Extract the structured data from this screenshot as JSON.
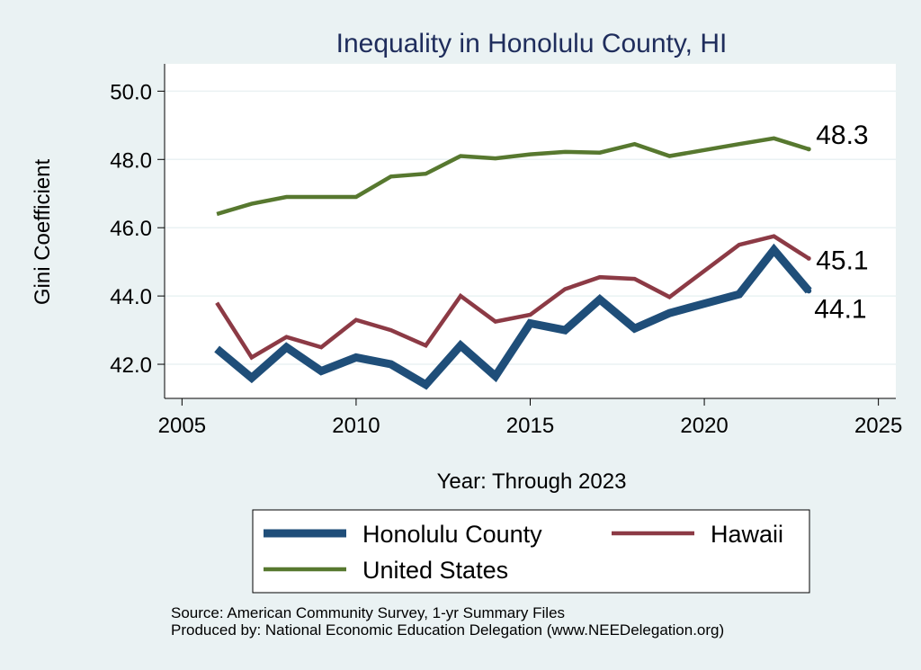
{
  "chart_data": {
    "type": "line",
    "title": "Inequality in Honolulu County, HI",
    "xlabel": "Year: Through 2023",
    "ylabel": "Gini Coefficient",
    "xlim": [
      2004.5,
      2025.5
    ],
    "ylim": [
      41.0,
      50.8
    ],
    "x_ticks": [
      2005,
      2010,
      2015,
      2020,
      2025
    ],
    "y_ticks": [
      42.0,
      44.0,
      46.0,
      48.0,
      50.0
    ],
    "y_tick_labels": [
      "42.0",
      "44.0",
      "46.0",
      "48.0",
      "50.0"
    ],
    "grid": true,
    "legend_position": "bottom",
    "x": [
      2006,
      2007,
      2008,
      2009,
      2010,
      2011,
      2012,
      2013,
      2014,
      2015,
      2016,
      2017,
      2018,
      2019,
      2021,
      2022,
      2023
    ],
    "series": [
      {
        "name": "Honolulu County",
        "color": "#1f4e79",
        "values": [
          42.45,
          41.6,
          42.5,
          41.8,
          42.2,
          42.0,
          41.4,
          42.55,
          41.65,
          43.2,
          43.0,
          43.9,
          43.05,
          43.5,
          44.05,
          45.35,
          44.15
        ],
        "end_label": "44.1"
      },
      {
        "name": "Hawaii",
        "color": "#8c3a45",
        "values": [
          43.8,
          42.2,
          42.8,
          42.5,
          43.3,
          43.0,
          42.55,
          44.0,
          43.25,
          43.45,
          44.2,
          44.55,
          44.5,
          43.97,
          45.5,
          45.75,
          45.1
        ],
        "end_label": "45.1"
      },
      {
        "name": "United States",
        "color": "#57782f",
        "values": [
          46.4,
          46.7,
          46.9,
          46.9,
          46.9,
          47.5,
          47.58,
          48.1,
          48.03,
          48.15,
          48.22,
          48.2,
          48.45,
          48.1,
          48.45,
          48.62,
          48.3
        ],
        "end_label": "48.3"
      }
    ]
  },
  "source_lines": [
    "Source: American Community Survey, 1-yr Summary Files",
    "Produced by: National Economic Education Delegation (www.NEEDelegation.org)"
  ]
}
